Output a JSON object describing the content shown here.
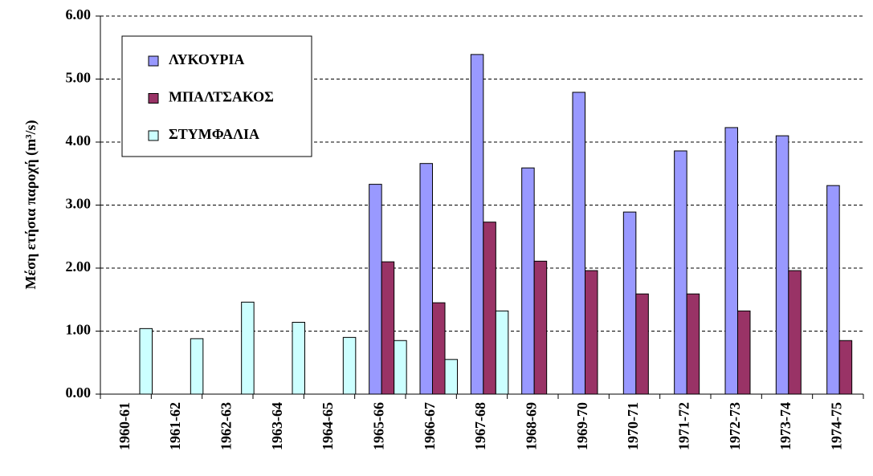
{
  "chart_data": {
    "type": "bar",
    "ylabel": "Μέση ετήσια παροχή (m³/s)",
    "categories": [
      "1960-61",
      "1961-62",
      "1962-63",
      "1963-64",
      "1964-65",
      "1965-66",
      "1966-67",
      "1967-68",
      "1968-69",
      "1969-70",
      "1970-71",
      "1971-72",
      "1972-73",
      "1973-74",
      "1974-75"
    ],
    "series": [
      {
        "name": "ΛΥΚΟΥΡΙΑ",
        "color": "#9999ff",
        "values": [
          null,
          null,
          null,
          null,
          null,
          3.33,
          3.66,
          5.39,
          3.59,
          4.79,
          2.89,
          3.86,
          4.23,
          4.1,
          3.31
        ]
      },
      {
        "name": "ΜΠΑΛΤΣΑΚΟΣ",
        "color": "#993366",
        "values": [
          null,
          null,
          null,
          null,
          null,
          2.1,
          1.45,
          2.73,
          2.11,
          1.96,
          1.59,
          1.59,
          1.32,
          1.96,
          0.85
        ]
      },
      {
        "name": "ΣΤΥΜΦΑΛΙΑ",
        "color": "#ccffff",
        "values": [
          1.04,
          0.88,
          1.46,
          1.14,
          0.9,
          0.85,
          0.55,
          1.32,
          null,
          null,
          null,
          null,
          null,
          null,
          null
        ]
      }
    ],
    "ylim": [
      0,
      6
    ],
    "yticks": [
      {
        "value": 0,
        "label": "0.00"
      },
      {
        "value": 1,
        "label": "1.00"
      },
      {
        "value": 2,
        "label": "2.00"
      },
      {
        "value": 3,
        "label": "3.00"
      },
      {
        "value": 4,
        "label": "4.00"
      },
      {
        "value": 5,
        "label": "5.00"
      },
      {
        "value": 6,
        "label": "6.00"
      }
    ],
    "grid": true,
    "legend": "upper left"
  }
}
